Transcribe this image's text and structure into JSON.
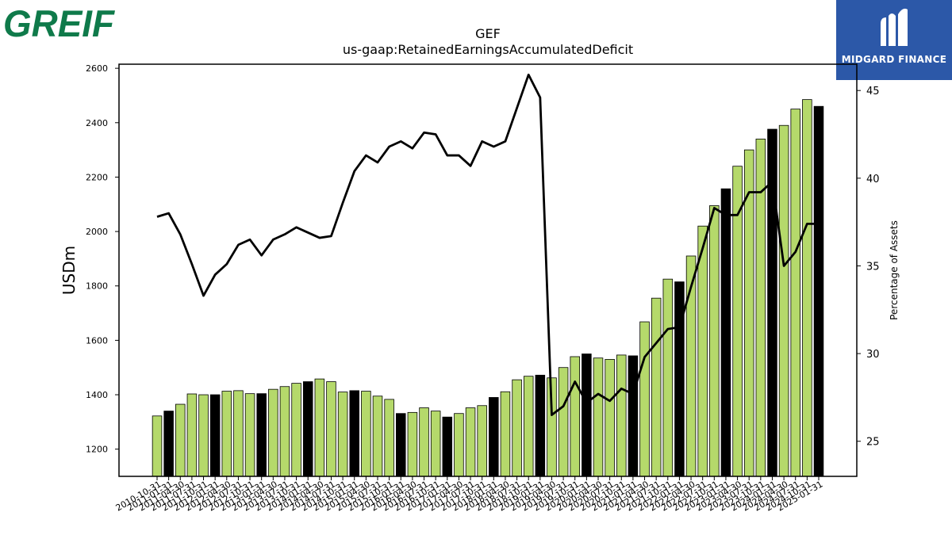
{
  "logos": {
    "left_text": "GREIF",
    "right_text": "MIDGARD FINANCE"
  },
  "chart_data": {
    "type": "bar",
    "title": "GEF",
    "subtitle": "us-gaap:RetainedEarningsAccumulatedDeficit",
    "ylabel": "USDm",
    "y2label": "Percentage of Assets",
    "ylim": [
      1100,
      2615
    ],
    "y2lim": [
      23,
      46.5
    ],
    "yticks": [
      1200,
      1400,
      1600,
      1800,
      2000,
      2200,
      2400,
      2600
    ],
    "y2ticks": [
      25,
      30,
      35,
      40,
      45
    ],
    "colors": {
      "bar_default": "#b5d96b",
      "bar_highlight": "#000000",
      "line": "#000000"
    },
    "categories": [
      "2010-10-31",
      "2011-01-31",
      "2011-04-30",
      "2011-07-31",
      "2011-10-31",
      "2012-01-31",
      "2012-04-30",
      "2012-07-31",
      "2012-10-31",
      "2013-01-31",
      "2013-04-30",
      "2013-07-31",
      "2013-10-31",
      "2014-01-31",
      "2014-04-30",
      "2014-07-31",
      "2014-10-31",
      "2015-01-31",
      "2015-04-30",
      "2015-07-31",
      "2015-10-31",
      "2016-01-31",
      "2016-04-30",
      "2016-07-31",
      "2016-10-31",
      "2017-01-31",
      "2017-04-30",
      "2017-07-31",
      "2017-10-31",
      "2018-01-31",
      "2018-04-30",
      "2018-07-31",
      "2018-10-31",
      "2019-01-31",
      "2019-04-30",
      "2019-07-31",
      "2019-10-31",
      "2020-01-31",
      "2020-04-30",
      "2020-07-31",
      "2020-10-31",
      "2021-01-31",
      "2021-04-30",
      "2021-07-31",
      "2021-10-31",
      "2022-01-31",
      "2022-04-30",
      "2022-07-31",
      "2022-10-31",
      "2023-01-31",
      "2023-04-30",
      "2023-07-31",
      "2023-10-31",
      "2024-01-31",
      "2024-04-30",
      "2024-07-31",
      "2024-10-31",
      "2025-01-31"
    ],
    "xtick_labels": [
      "2010-10-31",
      "2011-01-31",
      "2011-04-30",
      "2011-07-31",
      "2011-10-31",
      "2012-01-31",
      "2012-04-30",
      "2012-07-31",
      "2012-10-31",
      "2013-01-31",
      "2013-04-30",
      "2013-07-31",
      "2013-10-31",
      "2014-01-31",
      "2014-04-30",
      "2014-07-31",
      "2014-10-31",
      "2015-01-31",
      "2015-04-30",
      "2015-07-31",
      "2015-10-31",
      "2016-01-31",
      "2016-04-30",
      "2016-07-31",
      "2016-10-31",
      "2017-01-31",
      "2017-04-30",
      "2017-07-31",
      "2017-10-31",
      "2018-01-31",
      "2018-04-30",
      "2018-07-31",
      "2018-10-31",
      "2019-01-31",
      "2019-04-30",
      "2019-07-31",
      "2019-10-31",
      "2020-01-31",
      "2020-04-30",
      "2020-07-31",
      "2020-10-31",
      "2021-01-31",
      "2021-04-30",
      "2021-07-31",
      "2021-10-31",
      "2022-01-31",
      "2022-04-30",
      "2022-07-31",
      "2022-10-31",
      "2023-01-31",
      "2023-04-30",
      "2023-07-31",
      "2023-10-31",
      "2024-01-31",
      "2024-04-30",
      "2024-07-31",
      "2024-10-31",
      "2025-01-31"
    ],
    "highlight": [
      false,
      true,
      false,
      false,
      false,
      true,
      false,
      false,
      false,
      true,
      false,
      false,
      false,
      true,
      false,
      false,
      false,
      true,
      false,
      false,
      false,
      true,
      false,
      false,
      false,
      true,
      false,
      false,
      false,
      true,
      false,
      false,
      false,
      true,
      false,
      false,
      false,
      true,
      false,
      false,
      false,
      true,
      false,
      false,
      false,
      true,
      false,
      false,
      false,
      true,
      false,
      false,
      false,
      true,
      false,
      false,
      false,
      true
    ],
    "values": [
      1322,
      1340,
      1365,
      1403,
      1400,
      1400,
      1413,
      1415,
      1404,
      1404,
      1420,
      1430,
      1442,
      1448,
      1458,
      1448,
      1410,
      1415,
      1413,
      1395,
      1383,
      1331,
      1335,
      1352,
      1340,
      1318,
      1331,
      1352,
      1360,
      1390,
      1411,
      1455,
      1468,
      1472,
      1462,
      1500,
      1540,
      1550,
      1535,
      1530,
      1546,
      1543,
      1668,
      1755,
      1825,
      1815,
      1910,
      2020,
      2095,
      2157,
      2240,
      2300,
      2340,
      2376,
      2390,
      2450,
      2485,
      2460
    ],
    "pct_assets": [
      37.8,
      38.0,
      36.8,
      35.1,
      33.3,
      34.5,
      35.1,
      36.2,
      36.5,
      35.6,
      36.5,
      36.8,
      37.2,
      36.9,
      36.6,
      36.7,
      38.6,
      40.4,
      41.3,
      40.9,
      41.8,
      42.1,
      41.7,
      42.6,
      42.5,
      41.3,
      41.3,
      40.7,
      42.1,
      41.8,
      42.1,
      44.0,
      45.9,
      44.6,
      26.5,
      27.0,
      28.4,
      27.2,
      27.7,
      27.3,
      28.0,
      27.7,
      29.8,
      30.6,
      31.4,
      31.5,
      33.8,
      36.0,
      38.3,
      37.9,
      37.9,
      39.2,
      39.2,
      39.8,
      35.0,
      35.8,
      37.4,
      37.4
    ]
  }
}
